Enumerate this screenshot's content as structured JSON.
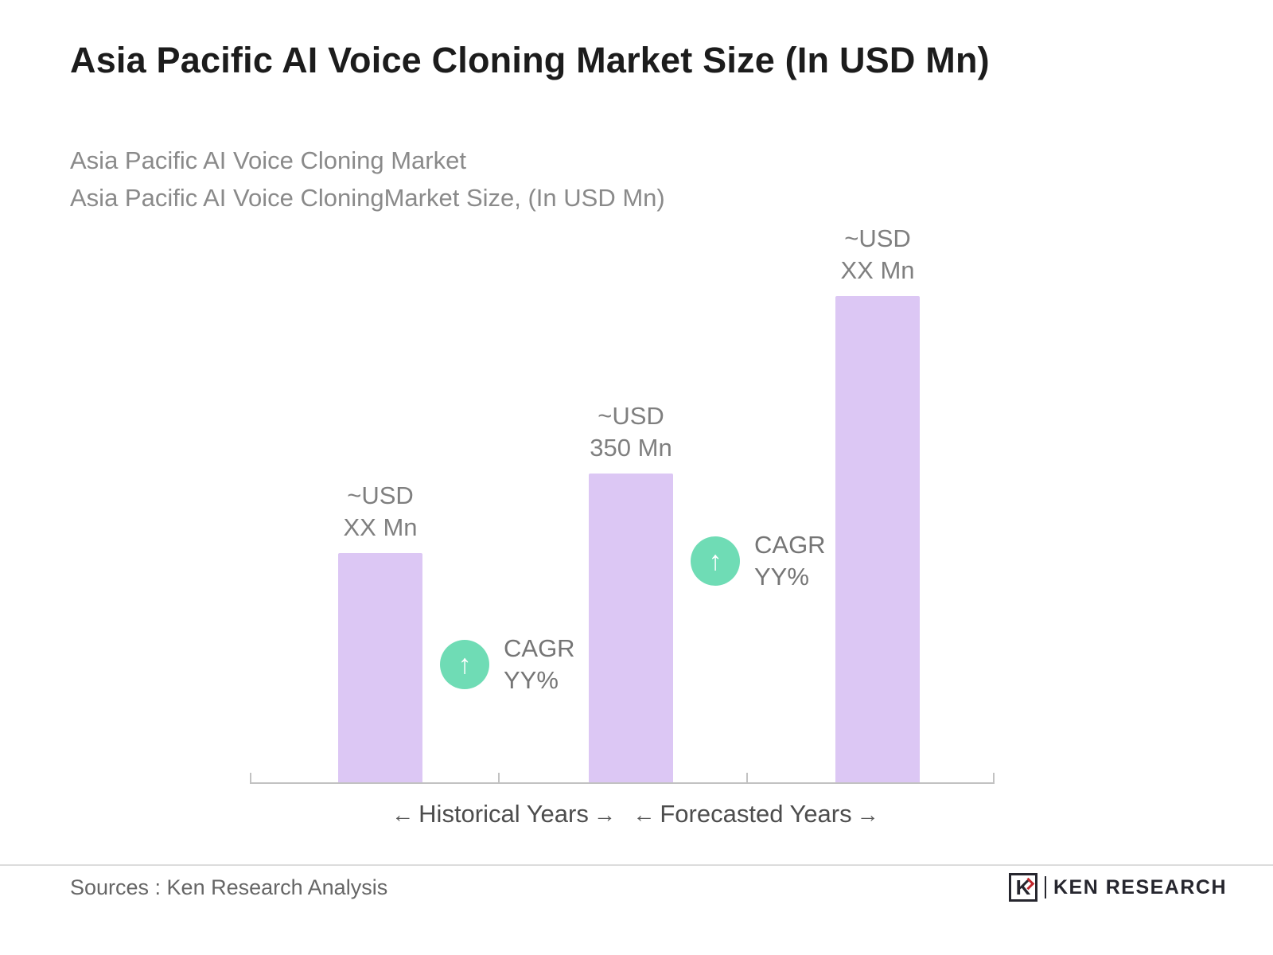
{
  "page": {
    "title": "Asia Pacific AI Voice Cloning Market Size (In USD Mn)",
    "subtitle_line1": "Asia Pacific AI Voice Cloning Market",
    "subtitle_line2": "Asia Pacific AI Voice CloningMarket Size, (In USD Mn)"
  },
  "chart_data": {
    "type": "bar",
    "title": "Asia Pacific AI Voice Cloning Market Size (In USD Mn)",
    "categories": [
      "Historical Years start",
      "Historical Years end",
      "Forecasted Years end"
    ],
    "values": [
      260,
      350,
      550
    ],
    "displayed_values": [
      "~USD XX Mn",
      "~USD 350 Mn",
      "~USD XX Mn"
    ],
    "bar_labels": [
      {
        "line1": "~USD",
        "line2": "XX Mn"
      },
      {
        "line1": "~USD",
        "line2": "350 Mn"
      },
      {
        "line1": "~USD",
        "line2": "XX Mn"
      }
    ],
    "annotations": [
      {
        "line1": "CAGR",
        "line2": "YY%"
      },
      {
        "line1": "CAGR",
        "line2": "YY%"
      }
    ],
    "x_axis_groups": [
      "Historical Years",
      "Forecasted Years"
    ],
    "ylim": [
      0,
      620
    ],
    "grid": false,
    "legend": false,
    "bar_color": "#DCC7F4",
    "badge_color": "#6FDCB5"
  },
  "axis": {
    "historical_label": "Historical Years",
    "forecast_label": "Forecasted Years",
    "left_arrow": "←",
    "right_arrow": "→"
  },
  "icons": {
    "up_arrow": "↑"
  },
  "footer": {
    "source": "Sources : Ken Research Analysis",
    "logo_letter": "K",
    "logo_text": "KEN RESEARCH"
  },
  "colors": {
    "bar": "#DCC7F4",
    "badge": "#6FDCB5",
    "title_text": "#1c1c1c",
    "subtitle_text": "#8a8a8a",
    "axis": "#c2c2c2",
    "logo_red": "#c0272d"
  }
}
